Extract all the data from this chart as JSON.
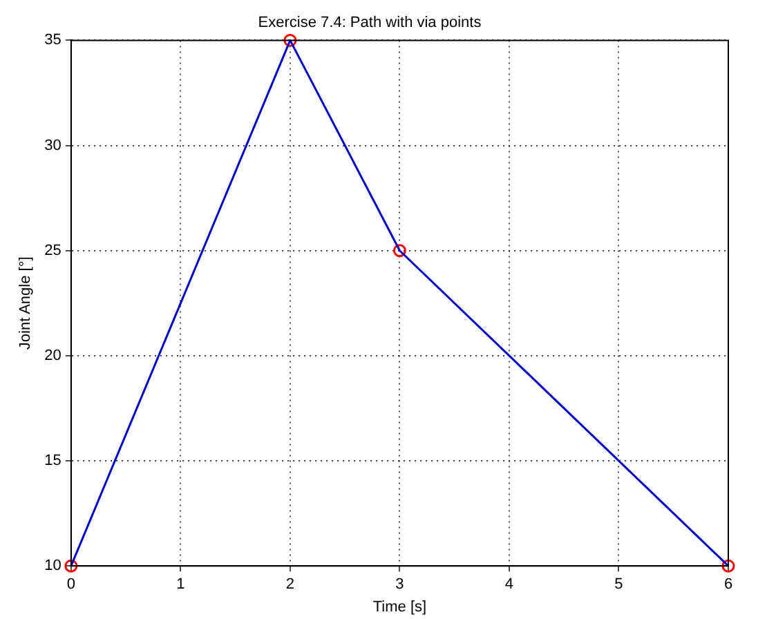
{
  "chart_data": {
    "type": "line",
    "title": "Exercise 7.4: Path with via points",
    "xlabel": "Time [s]",
    "ylabel": "Joint Angle [°]",
    "xlim": [
      0,
      6
    ],
    "xticks": [
      0,
      1,
      2,
      3,
      4,
      5,
      6
    ],
    "ylim": [
      10,
      35
    ],
    "yticks": [
      10,
      15,
      20,
      25,
      30,
      35
    ],
    "grid": true,
    "series": [
      {
        "color": "#0000cc",
        "x": [
          0,
          2,
          3,
          6
        ],
        "values": [
          10,
          35,
          25,
          10
        ],
        "marker": "none"
      },
      {
        "type": "scatter",
        "color": "#ff0000",
        "x": [
          0,
          2,
          3,
          6
        ],
        "values": [
          10,
          35,
          25,
          10
        ],
        "marker": "circle"
      }
    ]
  }
}
